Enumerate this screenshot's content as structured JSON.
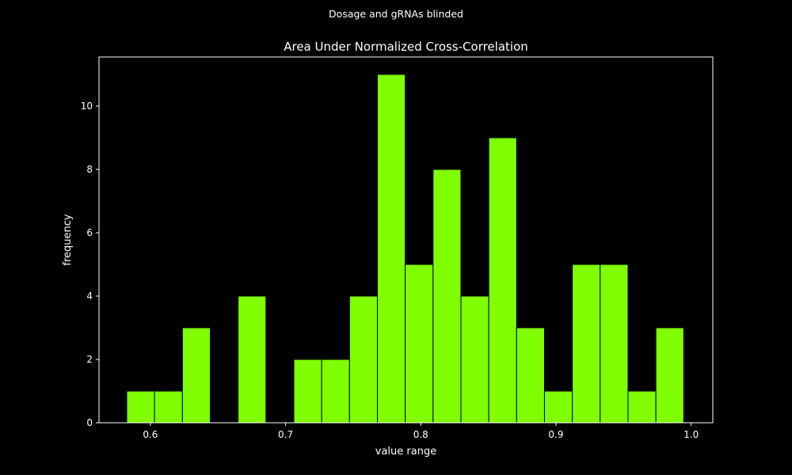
{
  "colors": {
    "background": "#000000",
    "bar_fill": "#7fff00",
    "bar_edge": "#000000",
    "axis": "#ffffff",
    "text": "#ffffff"
  },
  "chart_data": {
    "type": "bar",
    "suptitle": "Dosage and gRNAs blinded",
    "title": "Area Under Normalized Cross-Correlation",
    "xlabel": "value range",
    "ylabel": "frequency",
    "xlim": [
      0.562,
      1.016
    ],
    "ylim": [
      0,
      11.55
    ],
    "xticks": [
      0.6,
      0.7,
      0.8,
      0.9,
      1.0
    ],
    "xtick_labels": [
      "0.6",
      "0.7",
      "0.8",
      "0.9",
      "1.0"
    ],
    "yticks": [
      0,
      2,
      4,
      6,
      8,
      10
    ],
    "ytick_labels": [
      "0",
      "2",
      "4",
      "6",
      "8",
      "10"
    ],
    "grid": false,
    "legend": "none",
    "bins": [
      {
        "start": 0.5825,
        "end": 0.6031,
        "count": 1
      },
      {
        "start": 0.6031,
        "end": 0.6237,
        "count": 1
      },
      {
        "start": 0.6237,
        "end": 0.6443,
        "count": 3
      },
      {
        "start": 0.6443,
        "end": 0.6649,
        "count": 0
      },
      {
        "start": 0.6649,
        "end": 0.6855,
        "count": 4
      },
      {
        "start": 0.6855,
        "end": 0.7061,
        "count": 0
      },
      {
        "start": 0.7061,
        "end": 0.7267,
        "count": 2
      },
      {
        "start": 0.7267,
        "end": 0.7473,
        "count": 2
      },
      {
        "start": 0.7473,
        "end": 0.7679,
        "count": 4
      },
      {
        "start": 0.7679,
        "end": 0.7885,
        "count": 11
      },
      {
        "start": 0.7885,
        "end": 0.8091,
        "count": 5
      },
      {
        "start": 0.8091,
        "end": 0.8297,
        "count": 8
      },
      {
        "start": 0.8297,
        "end": 0.8503,
        "count": 4
      },
      {
        "start": 0.8503,
        "end": 0.8709,
        "count": 9
      },
      {
        "start": 0.8709,
        "end": 0.8915,
        "count": 3
      },
      {
        "start": 0.8915,
        "end": 0.9121,
        "count": 1
      },
      {
        "start": 0.9121,
        "end": 0.9327,
        "count": 5
      },
      {
        "start": 0.9327,
        "end": 0.9533,
        "count": 5
      },
      {
        "start": 0.9533,
        "end": 0.9739,
        "count": 1
      },
      {
        "start": 0.9739,
        "end": 0.9945,
        "count": 3
      }
    ]
  }
}
